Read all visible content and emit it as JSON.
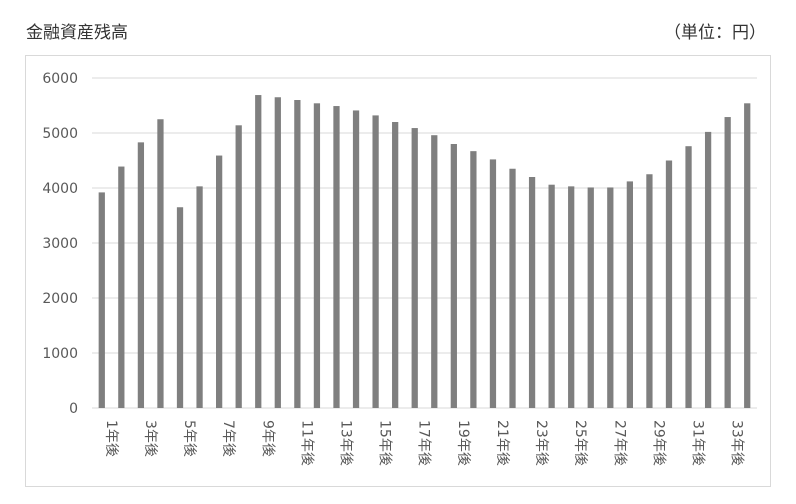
{
  "header": {
    "title": "金融資産残高",
    "unit": "（単位：円）"
  },
  "colors": {
    "bar": "#7f7f7f",
    "grid": "#d9d9d9",
    "axis_text": "#595959"
  },
  "chart_data": {
    "type": "bar",
    "title": "金融資産残高",
    "xlabel": "",
    "ylabel": "",
    "ylim": [
      0,
      6000
    ],
    "yticks": [
      0,
      1000,
      2000,
      3000,
      4000,
      5000,
      6000
    ],
    "grid": true,
    "legend": "none",
    "categories": [
      "1年後",
      "2年後",
      "3年後",
      "4年後",
      "5年後",
      "6年後",
      "7年後",
      "8年後",
      "9年後",
      "10年後",
      "11年後",
      "12年後",
      "13年後",
      "14年後",
      "15年後",
      "16年後",
      "17年後",
      "18年後",
      "19年後",
      "20年後",
      "21年後",
      "22年後",
      "23年後",
      "24年後",
      "25年後",
      "26年後",
      "27年後",
      "28年後",
      "29年後",
      "30年後",
      "31年後",
      "32年後",
      "33年後",
      "34年後"
    ],
    "tick_labels": [
      "1年後",
      "",
      "3年後",
      "",
      "5年後",
      "",
      "7年後",
      "",
      "9年後",
      "",
      "11年後",
      "",
      "13年後",
      "",
      "15年後",
      "",
      "17年後",
      "",
      "19年後",
      "",
      "21年後",
      "",
      "23年後",
      "",
      "25年後",
      "",
      "27年後",
      "",
      "29年後",
      "",
      "31年後",
      "",
      "33年後",
      ""
    ],
    "values": [
      3920,
      4390,
      4830,
      5250,
      3650,
      4030,
      4590,
      5140,
      5690,
      5650,
      5600,
      5540,
      5490,
      5410,
      5320,
      5200,
      5090,
      4960,
      4800,
      4670,
      4520,
      4350,
      4200,
      4060,
      4030,
      4010,
      4010,
      4120,
      4250,
      4500,
      4760,
      5020,
      5290,
      5540
    ]
  }
}
